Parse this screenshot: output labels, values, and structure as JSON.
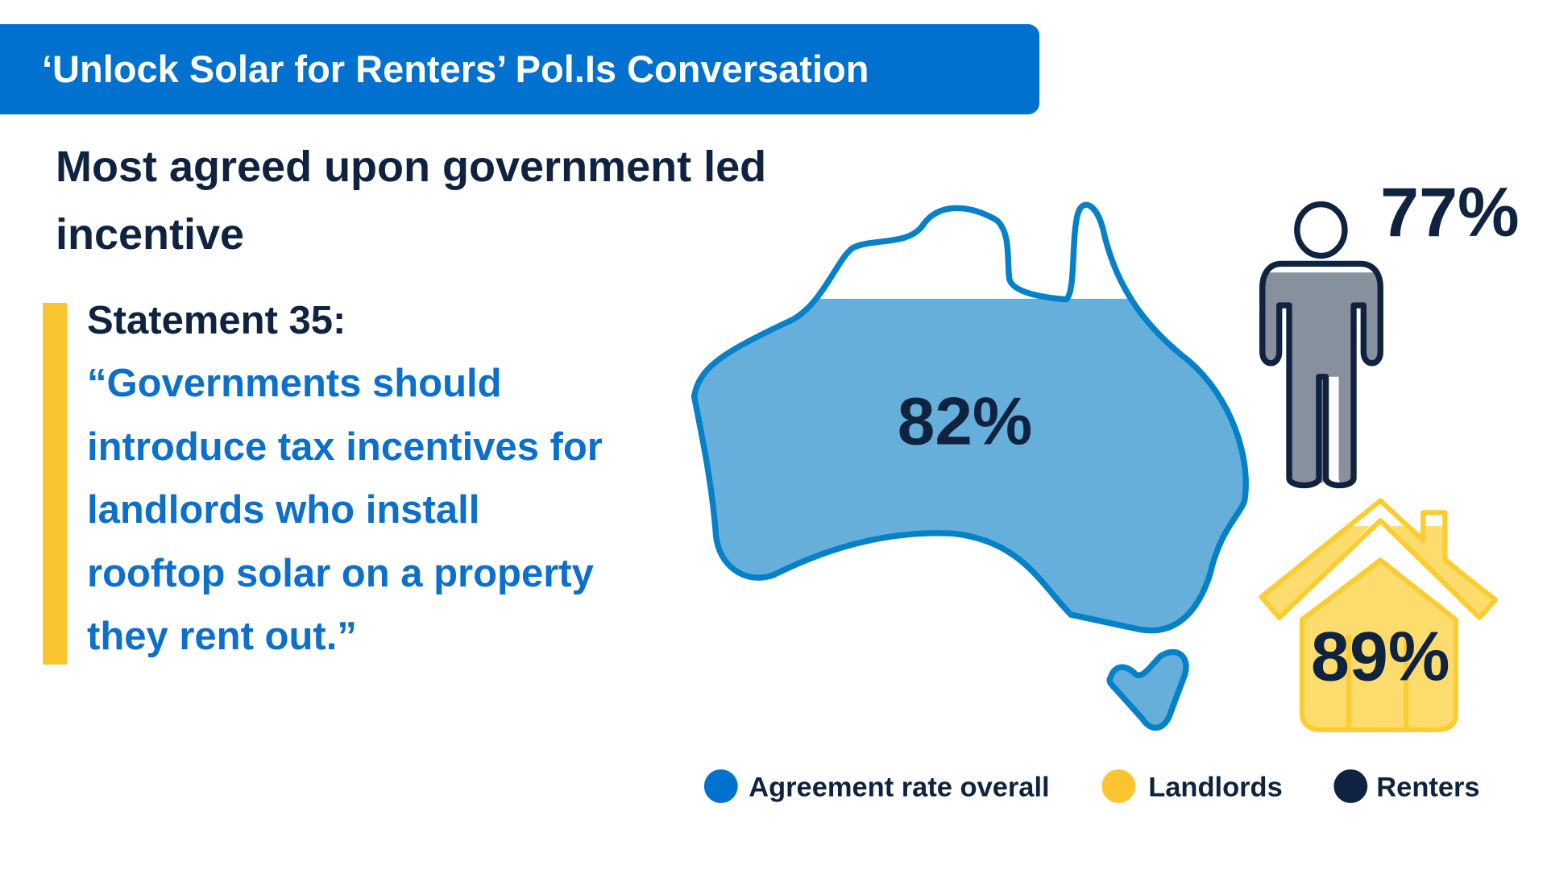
{
  "header": {
    "title": "‘Unlock Solar for Renters’ Pol.Is Conversation"
  },
  "heading": {
    "lines": [
      "Most agreed upon government led",
      "incentive"
    ]
  },
  "statement": {
    "label": "Statement 35:",
    "quote_lines": [
      "“Governments should",
      "introduce tax incentives for",
      "landlords who install",
      "rooftop solar on a property",
      "they rent out.”"
    ]
  },
  "stats": {
    "overall": {
      "value": 82,
      "label": "82%",
      "icon": "australia-map-icon"
    },
    "renters": {
      "value": 77,
      "label": "77%",
      "icon": "person-icon"
    },
    "landlords": {
      "value": 89,
      "label": "89%",
      "icon": "house-icon"
    }
  },
  "legend": [
    {
      "label": "Agreement rate overall",
      "color": "#0171cf"
    },
    {
      "label": "Landlords",
      "color": "#fcc52f"
    },
    {
      "label": "Renters",
      "color": "#0f2340"
    }
  ],
  "colors": {
    "brand_blue": "#0171cf",
    "map_fill": "#67afdb",
    "navy": "#0f2340",
    "yellow": "#fcc52f",
    "house_fill": "#fddc6e",
    "person_fill": "#87919e"
  }
}
